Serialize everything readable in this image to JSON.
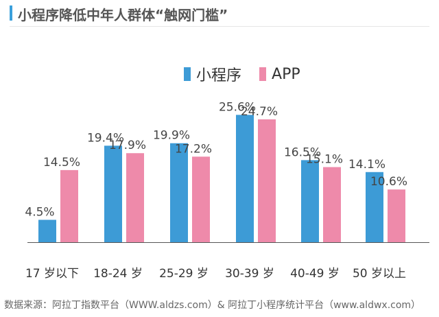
{
  "title": "小程序降低中年人群体“触网门槛”",
  "source": "数据来源：阿拉丁指数平台（WWW.aldzs.com）& 阿拉丁小程序统计平台（www.aldwx.com）",
  "colors": {
    "accent": "#3aa0dc",
    "series_1": "#3d9bd6",
    "series_2": "#ee8aaa"
  },
  "chart_data": {
    "type": "bar",
    "title": "",
    "xlabel": "",
    "ylabel": "",
    "ylim": [
      0,
      28
    ],
    "grid": false,
    "legend_position": "top",
    "value_suffix": "%",
    "categories": [
      "17 岁以下",
      "18-24 岁",
      "25-29 岁",
      "30-39 岁",
      "40-49 岁",
      "50 岁以上"
    ],
    "series": [
      {
        "name": "小程序",
        "values": [
          4.5,
          19.4,
          19.9,
          25.6,
          16.5,
          14.1
        ]
      },
      {
        "name": "APP",
        "values": [
          14.5,
          17.9,
          17.2,
          24.7,
          15.1,
          10.6
        ]
      }
    ]
  }
}
